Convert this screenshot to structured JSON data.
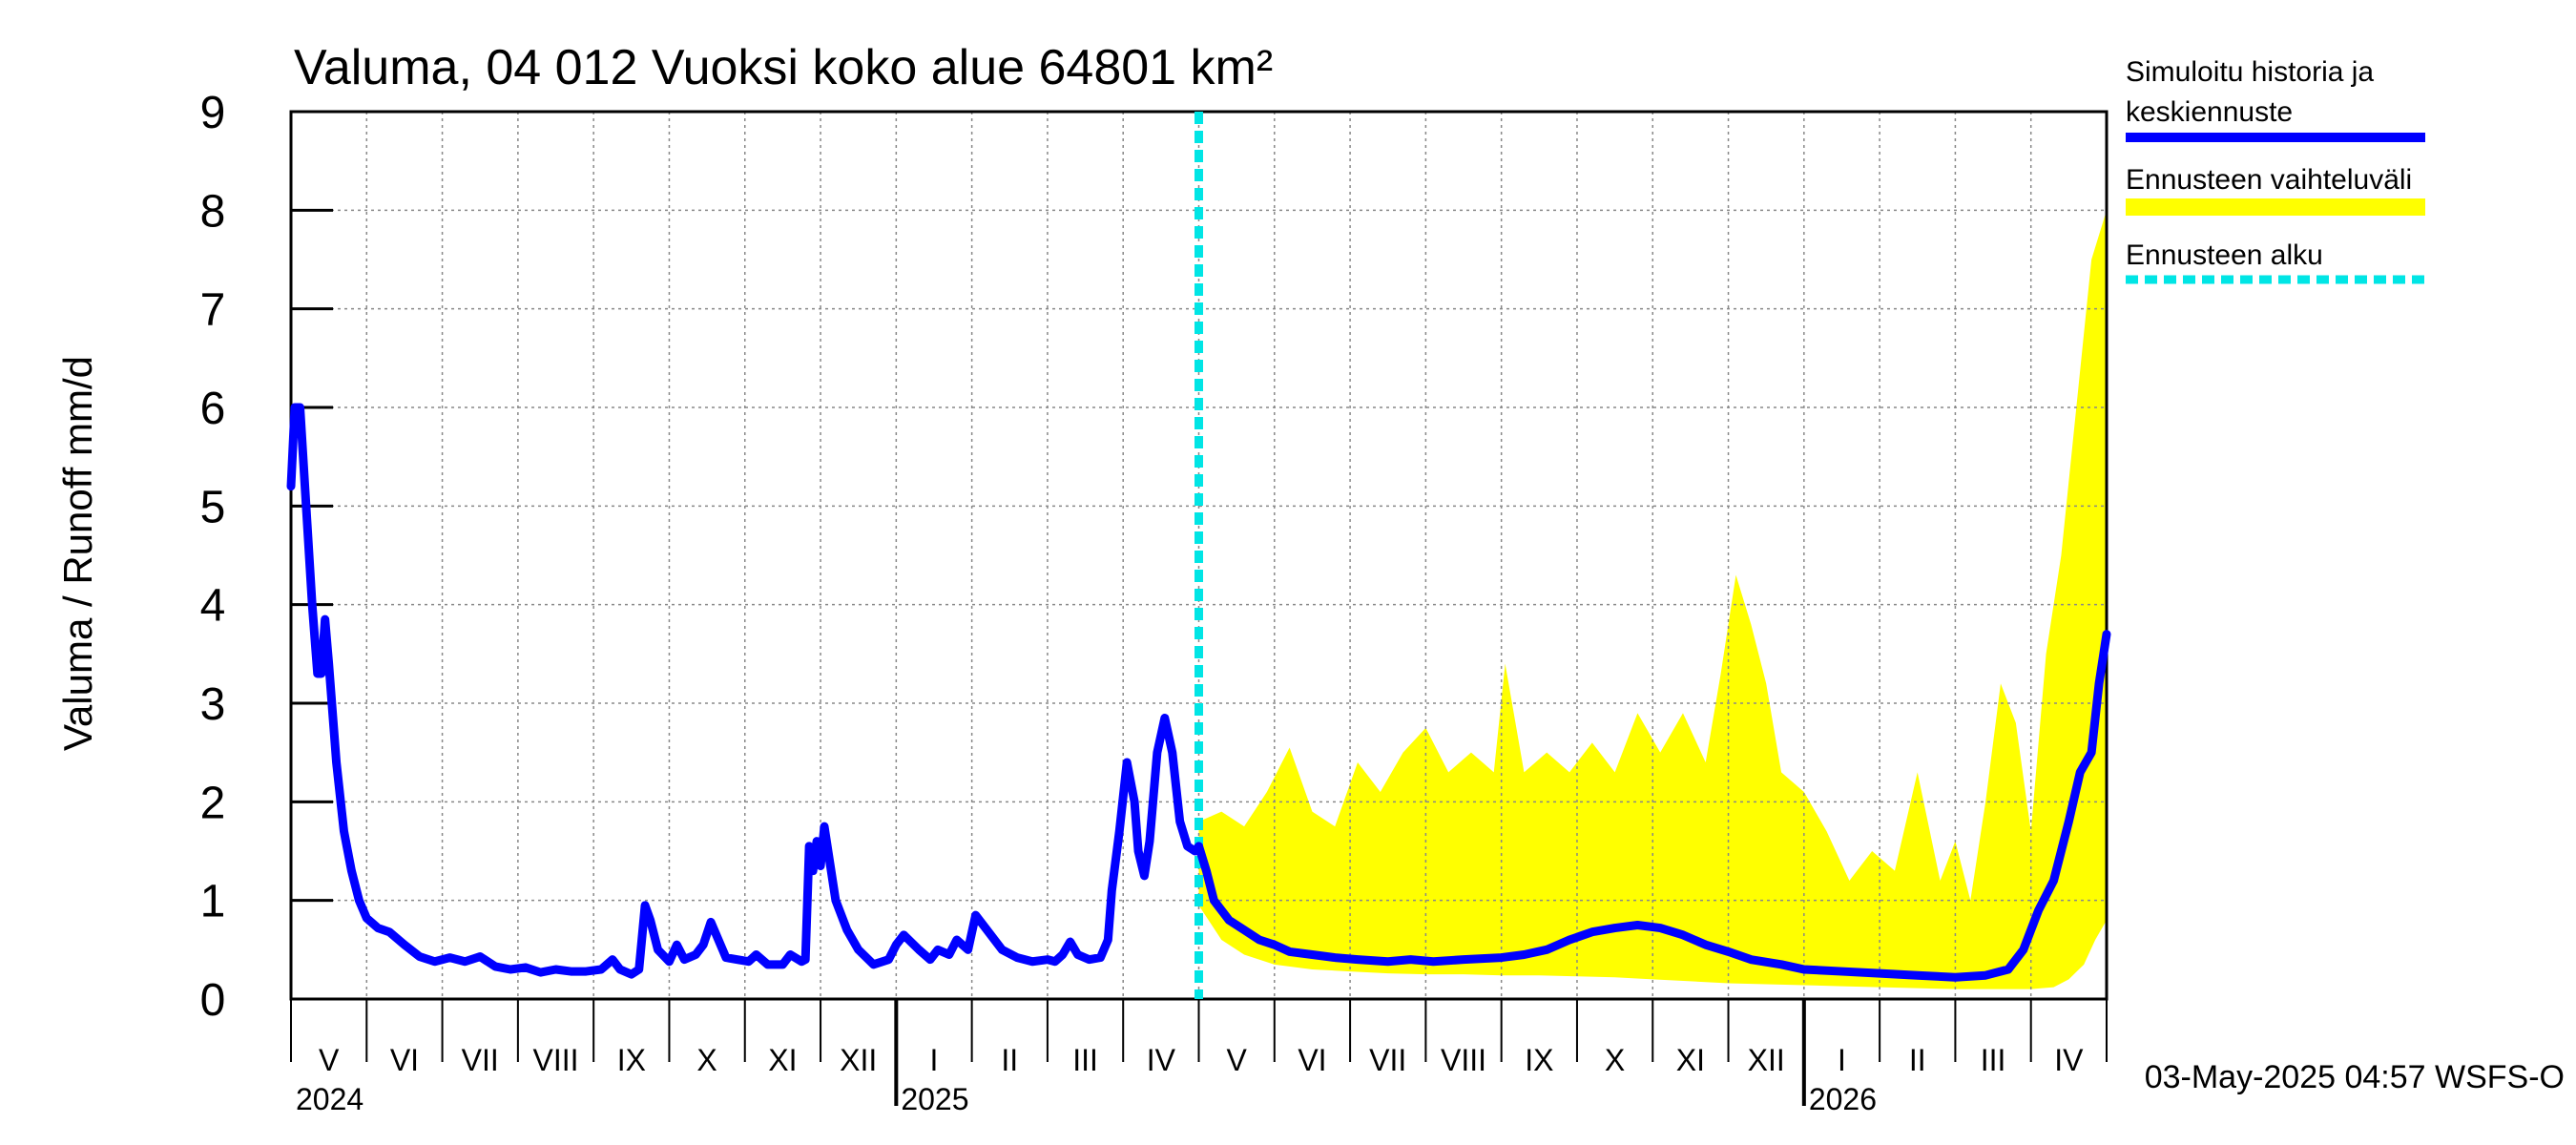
{
  "chart_data": {
    "type": "line",
    "title": "Valuma, 04 012 Vuoksi koko alue 64801 km²",
    "ylabel": "Valuma / Runoff     mm/d",
    "ylim": [
      0,
      9
    ],
    "yticks": [
      "0",
      "1",
      "2",
      "3",
      "4",
      "5",
      "6",
      "7",
      "8",
      "9"
    ],
    "x_range_months": [
      0,
      24
    ],
    "month_labels": [
      "V",
      "VI",
      "VII",
      "VIII",
      "IX",
      "X",
      "XI",
      "XII",
      "I",
      "II",
      "III",
      "IV",
      "V",
      "VI",
      "VII",
      "VIII",
      "IX",
      "X",
      "XI",
      "XII",
      "I",
      "II",
      "III",
      "IV"
    ],
    "year_labels": [
      {
        "label": "2024",
        "month": 0
      },
      {
        "label": "2025",
        "month": 8
      },
      {
        "label": "2026",
        "month": 20
      }
    ],
    "forecast_start_month": 12.0,
    "series": [
      {
        "name": "Simuloitu historia ja keskiennuste",
        "color": "#0000ff",
        "points": [
          [
            0.0,
            5.2
          ],
          [
            0.05,
            6.0
          ],
          [
            0.12,
            6.0
          ],
          [
            0.2,
            5.0
          ],
          [
            0.28,
            4.0
          ],
          [
            0.35,
            3.3
          ],
          [
            0.4,
            3.3
          ],
          [
            0.45,
            3.85
          ],
          [
            0.5,
            3.4
          ],
          [
            0.6,
            2.4
          ],
          [
            0.7,
            1.7
          ],
          [
            0.8,
            1.3
          ],
          [
            0.9,
            1.0
          ],
          [
            1.0,
            0.82
          ],
          [
            1.15,
            0.72
          ],
          [
            1.3,
            0.68
          ],
          [
            1.5,
            0.55
          ],
          [
            1.7,
            0.43
          ],
          [
            1.9,
            0.38
          ],
          [
            2.1,
            0.42
          ],
          [
            2.3,
            0.38
          ],
          [
            2.5,
            0.43
          ],
          [
            2.7,
            0.33
          ],
          [
            2.9,
            0.3
          ],
          [
            3.1,
            0.32
          ],
          [
            3.3,
            0.27
          ],
          [
            3.5,
            0.3
          ],
          [
            3.7,
            0.28
          ],
          [
            3.9,
            0.28
          ],
          [
            4.1,
            0.3
          ],
          [
            4.25,
            0.4
          ],
          [
            4.35,
            0.3
          ],
          [
            4.5,
            0.25
          ],
          [
            4.6,
            0.3
          ],
          [
            4.68,
            0.95
          ],
          [
            4.75,
            0.8
          ],
          [
            4.85,
            0.5
          ],
          [
            5.0,
            0.38
          ],
          [
            5.1,
            0.55
          ],
          [
            5.2,
            0.4
          ],
          [
            5.35,
            0.45
          ],
          [
            5.45,
            0.55
          ],
          [
            5.55,
            0.78
          ],
          [
            5.65,
            0.6
          ],
          [
            5.75,
            0.42
          ],
          [
            5.9,
            0.4
          ],
          [
            6.05,
            0.38
          ],
          [
            6.15,
            0.45
          ],
          [
            6.3,
            0.35
          ],
          [
            6.5,
            0.35
          ],
          [
            6.6,
            0.45
          ],
          [
            6.75,
            0.38
          ],
          [
            6.8,
            0.4
          ],
          [
            6.85,
            1.55
          ],
          [
            6.9,
            1.3
          ],
          [
            6.95,
            1.6
          ],
          [
            7.0,
            1.35
          ],
          [
            7.05,
            1.75
          ],
          [
            7.1,
            1.5
          ],
          [
            7.2,
            1.0
          ],
          [
            7.35,
            0.7
          ],
          [
            7.5,
            0.5
          ],
          [
            7.7,
            0.35
          ],
          [
            7.9,
            0.4
          ],
          [
            8.0,
            0.55
          ],
          [
            8.1,
            0.65
          ],
          [
            8.3,
            0.5
          ],
          [
            8.45,
            0.4
          ],
          [
            8.55,
            0.5
          ],
          [
            8.7,
            0.45
          ],
          [
            8.8,
            0.6
          ],
          [
            8.95,
            0.5
          ],
          [
            9.05,
            0.85
          ],
          [
            9.2,
            0.7
          ],
          [
            9.4,
            0.5
          ],
          [
            9.6,
            0.42
          ],
          [
            9.8,
            0.38
          ],
          [
            10.0,
            0.4
          ],
          [
            10.1,
            0.38
          ],
          [
            10.2,
            0.45
          ],
          [
            10.3,
            0.58
          ],
          [
            10.4,
            0.45
          ],
          [
            10.55,
            0.4
          ],
          [
            10.7,
            0.42
          ],
          [
            10.8,
            0.6
          ],
          [
            10.85,
            1.1
          ],
          [
            10.95,
            1.7
          ],
          [
            11.05,
            2.4
          ],
          [
            11.15,
            2.0
          ],
          [
            11.2,
            1.5
          ],
          [
            11.28,
            1.25
          ],
          [
            11.35,
            1.6
          ],
          [
            11.45,
            2.5
          ],
          [
            11.55,
            2.85
          ],
          [
            11.65,
            2.5
          ],
          [
            11.75,
            1.8
          ],
          [
            11.85,
            1.55
          ],
          [
            11.95,
            1.5
          ],
          [
            12.0,
            1.55
          ],
          [
            12.1,
            1.3
          ],
          [
            12.2,
            1.0
          ],
          [
            12.4,
            0.8
          ],
          [
            12.6,
            0.7
          ],
          [
            12.8,
            0.6
          ],
          [
            13.0,
            0.55
          ],
          [
            13.2,
            0.48
          ],
          [
            13.5,
            0.45
          ],
          [
            13.8,
            0.42
          ],
          [
            14.1,
            0.4
          ],
          [
            14.5,
            0.38
          ],
          [
            14.8,
            0.4
          ],
          [
            15.1,
            0.38
          ],
          [
            15.5,
            0.4
          ],
          [
            16.0,
            0.42
          ],
          [
            16.3,
            0.45
          ],
          [
            16.6,
            0.5
          ],
          [
            16.9,
            0.6
          ],
          [
            17.2,
            0.68
          ],
          [
            17.5,
            0.72
          ],
          [
            17.8,
            0.75
          ],
          [
            18.1,
            0.72
          ],
          [
            18.4,
            0.65
          ],
          [
            18.7,
            0.55
          ],
          [
            19.0,
            0.48
          ],
          [
            19.3,
            0.4
          ],
          [
            19.7,
            0.35
          ],
          [
            20.0,
            0.3
          ],
          [
            20.5,
            0.28
          ],
          [
            21.0,
            0.26
          ],
          [
            21.5,
            0.24
          ],
          [
            22.0,
            0.22
          ],
          [
            22.4,
            0.24
          ],
          [
            22.7,
            0.3
          ],
          [
            22.9,
            0.5
          ],
          [
            23.1,
            0.9
          ],
          [
            23.3,
            1.2
          ],
          [
            23.5,
            1.8
          ],
          [
            23.65,
            2.3
          ],
          [
            23.8,
            2.5
          ],
          [
            23.9,
            3.2
          ],
          [
            24.0,
            3.7
          ]
        ]
      }
    ],
    "band": {
      "name": "Ennusteen vaihteluväli",
      "color": "#ffff00",
      "upper": [
        [
          12.0,
          1.8
        ],
        [
          12.3,
          1.9
        ],
        [
          12.6,
          1.75
        ],
        [
          12.9,
          2.1
        ],
        [
          13.2,
          2.55
        ],
        [
          13.5,
          1.9
        ],
        [
          13.8,
          1.75
        ],
        [
          14.1,
          2.4
        ],
        [
          14.4,
          2.1
        ],
        [
          14.7,
          2.5
        ],
        [
          15.0,
          2.75
        ],
        [
          15.3,
          2.3
        ],
        [
          15.6,
          2.5
        ],
        [
          15.9,
          2.3
        ],
        [
          16.05,
          3.4
        ],
        [
          16.3,
          2.3
        ],
        [
          16.6,
          2.5
        ],
        [
          16.9,
          2.3
        ],
        [
          17.2,
          2.6
        ],
        [
          17.5,
          2.3
        ],
        [
          17.8,
          2.9
        ],
        [
          18.1,
          2.5
        ],
        [
          18.4,
          2.9
        ],
        [
          18.7,
          2.4
        ],
        [
          18.9,
          3.3
        ],
        [
          19.1,
          4.3
        ],
        [
          19.3,
          3.8
        ],
        [
          19.5,
          3.2
        ],
        [
          19.7,
          2.3
        ],
        [
          20.0,
          2.1
        ],
        [
          20.3,
          1.7
        ],
        [
          20.6,
          1.2
        ],
        [
          20.9,
          1.5
        ],
        [
          21.2,
          1.3
        ],
        [
          21.5,
          2.3
        ],
        [
          21.8,
          1.2
        ],
        [
          22.0,
          1.6
        ],
        [
          22.2,
          1.0
        ],
        [
          22.4,
          2.0
        ],
        [
          22.6,
          3.2
        ],
        [
          22.8,
          2.8
        ],
        [
          23.0,
          1.7
        ],
        [
          23.2,
          3.5
        ],
        [
          23.4,
          4.5
        ],
        [
          23.6,
          6.0
        ],
        [
          23.8,
          7.5
        ],
        [
          24.0,
          8.0
        ]
      ],
      "lower": [
        [
          12.0,
          0.95
        ],
        [
          12.3,
          0.6
        ],
        [
          12.6,
          0.45
        ],
        [
          13.0,
          0.35
        ],
        [
          13.5,
          0.3
        ],
        [
          14.0,
          0.28
        ],
        [
          14.5,
          0.26
        ],
        [
          15.0,
          0.25
        ],
        [
          15.5,
          0.25
        ],
        [
          16.0,
          0.24
        ],
        [
          16.5,
          0.24
        ],
        [
          17.0,
          0.23
        ],
        [
          17.5,
          0.22
        ],
        [
          18.0,
          0.2
        ],
        [
          18.5,
          0.18
        ],
        [
          19.0,
          0.16
        ],
        [
          19.5,
          0.15
        ],
        [
          20.0,
          0.14
        ],
        [
          20.5,
          0.13
        ],
        [
          21.0,
          0.12
        ],
        [
          21.5,
          0.11
        ],
        [
          22.0,
          0.1
        ],
        [
          22.5,
          0.1
        ],
        [
          23.0,
          0.1
        ],
        [
          23.3,
          0.12
        ],
        [
          23.5,
          0.2
        ],
        [
          23.7,
          0.35
        ],
        [
          23.85,
          0.6
        ],
        [
          24.0,
          0.8
        ]
      ]
    }
  },
  "legend": {
    "items": [
      {
        "line1": "Simuloitu historia ja",
        "line2": "keskiennuste",
        "color": "#0000ff",
        "style": "solid"
      },
      {
        "line1": "Ennusteen vaihteluväli",
        "line2": "",
        "color": "#ffff00",
        "style": "solid"
      },
      {
        "line1": "Ennusteen alku",
        "line2": "",
        "color": "#00e5e5",
        "style": "dashed"
      }
    ]
  },
  "footer": {
    "timestamp": "03-May-2025 04:57 WSFS-O"
  }
}
